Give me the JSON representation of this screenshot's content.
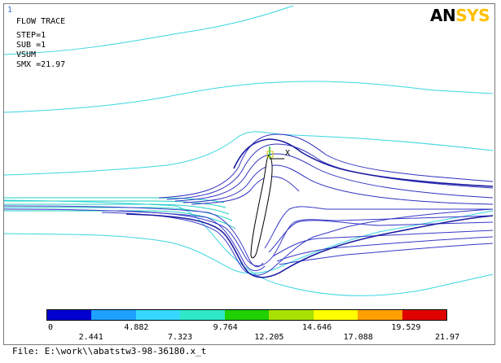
{
  "window_number": "1",
  "info": {
    "title": "FLOW TRACE",
    "step": "STEP=1",
    "sub": "SUB =1",
    "result": "VSUM",
    "smx": "SMX =21.97"
  },
  "logo": {
    "part_a": "AN",
    "part_b": "SYS"
  },
  "axis_label": "X",
  "legend": {
    "colors": [
      "#0000d0",
      "#1ea0ff",
      "#36d8ff",
      "#30e8c8",
      "#20d000",
      "#a8e000",
      "#ffff00",
      "#ffa000",
      "#e00000"
    ],
    "ticks_lower": [
      "0",
      "4.882",
      "9.764",
      "14.646",
      "19.529"
    ],
    "ticks_upper": [
      "2.441",
      "7.323",
      "12.205",
      "17.088",
      "21.97"
    ]
  },
  "file_label": "File: E:\\work\\\\abatstw3-98-36180.x_t",
  "icons": {
    "triad": "coordinate-triad-icon",
    "logo": "ansys-logo-icon"
  }
}
